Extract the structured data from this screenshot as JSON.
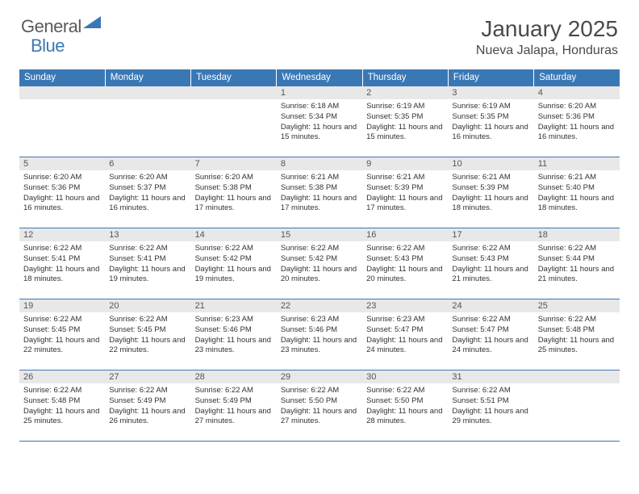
{
  "logo": {
    "text1": "General",
    "text2": "Blue",
    "text1_color": "#5a5a5a",
    "text2_color": "#3a78b5",
    "icon_color": "#3a78b5"
  },
  "title": "January 2025",
  "location": "Nueva Jalapa, Honduras",
  "colors": {
    "header_bg": "#3a78b5",
    "header_text": "#ffffff",
    "daynum_bg": "#e8e8e8",
    "border": "#3a78b5"
  },
  "columns": [
    "Sunday",
    "Monday",
    "Tuesday",
    "Wednesday",
    "Thursday",
    "Friday",
    "Saturday"
  ],
  "weeks": [
    [
      null,
      null,
      null,
      {
        "n": "1",
        "sr": "6:18 AM",
        "ss": "5:34 PM",
        "dl": "11 hours and 15 minutes."
      },
      {
        "n": "2",
        "sr": "6:19 AM",
        "ss": "5:35 PM",
        "dl": "11 hours and 15 minutes."
      },
      {
        "n": "3",
        "sr": "6:19 AM",
        "ss": "5:35 PM",
        "dl": "11 hours and 16 minutes."
      },
      {
        "n": "4",
        "sr": "6:20 AM",
        "ss": "5:36 PM",
        "dl": "11 hours and 16 minutes."
      }
    ],
    [
      {
        "n": "5",
        "sr": "6:20 AM",
        "ss": "5:36 PM",
        "dl": "11 hours and 16 minutes."
      },
      {
        "n": "6",
        "sr": "6:20 AM",
        "ss": "5:37 PM",
        "dl": "11 hours and 16 minutes."
      },
      {
        "n": "7",
        "sr": "6:20 AM",
        "ss": "5:38 PM",
        "dl": "11 hours and 17 minutes."
      },
      {
        "n": "8",
        "sr": "6:21 AM",
        "ss": "5:38 PM",
        "dl": "11 hours and 17 minutes."
      },
      {
        "n": "9",
        "sr": "6:21 AM",
        "ss": "5:39 PM",
        "dl": "11 hours and 17 minutes."
      },
      {
        "n": "10",
        "sr": "6:21 AM",
        "ss": "5:39 PM",
        "dl": "11 hours and 18 minutes."
      },
      {
        "n": "11",
        "sr": "6:21 AM",
        "ss": "5:40 PM",
        "dl": "11 hours and 18 minutes."
      }
    ],
    [
      {
        "n": "12",
        "sr": "6:22 AM",
        "ss": "5:41 PM",
        "dl": "11 hours and 18 minutes."
      },
      {
        "n": "13",
        "sr": "6:22 AM",
        "ss": "5:41 PM",
        "dl": "11 hours and 19 minutes."
      },
      {
        "n": "14",
        "sr": "6:22 AM",
        "ss": "5:42 PM",
        "dl": "11 hours and 19 minutes."
      },
      {
        "n": "15",
        "sr": "6:22 AM",
        "ss": "5:42 PM",
        "dl": "11 hours and 20 minutes."
      },
      {
        "n": "16",
        "sr": "6:22 AM",
        "ss": "5:43 PM",
        "dl": "11 hours and 20 minutes."
      },
      {
        "n": "17",
        "sr": "6:22 AM",
        "ss": "5:43 PM",
        "dl": "11 hours and 21 minutes."
      },
      {
        "n": "18",
        "sr": "6:22 AM",
        "ss": "5:44 PM",
        "dl": "11 hours and 21 minutes."
      }
    ],
    [
      {
        "n": "19",
        "sr": "6:22 AM",
        "ss": "5:45 PM",
        "dl": "11 hours and 22 minutes."
      },
      {
        "n": "20",
        "sr": "6:22 AM",
        "ss": "5:45 PM",
        "dl": "11 hours and 22 minutes."
      },
      {
        "n": "21",
        "sr": "6:23 AM",
        "ss": "5:46 PM",
        "dl": "11 hours and 23 minutes."
      },
      {
        "n": "22",
        "sr": "6:23 AM",
        "ss": "5:46 PM",
        "dl": "11 hours and 23 minutes."
      },
      {
        "n": "23",
        "sr": "6:23 AM",
        "ss": "5:47 PM",
        "dl": "11 hours and 24 minutes."
      },
      {
        "n": "24",
        "sr": "6:22 AM",
        "ss": "5:47 PM",
        "dl": "11 hours and 24 minutes."
      },
      {
        "n": "25",
        "sr": "6:22 AM",
        "ss": "5:48 PM",
        "dl": "11 hours and 25 minutes."
      }
    ],
    [
      {
        "n": "26",
        "sr": "6:22 AM",
        "ss": "5:48 PM",
        "dl": "11 hours and 25 minutes."
      },
      {
        "n": "27",
        "sr": "6:22 AM",
        "ss": "5:49 PM",
        "dl": "11 hours and 26 minutes."
      },
      {
        "n": "28",
        "sr": "6:22 AM",
        "ss": "5:49 PM",
        "dl": "11 hours and 27 minutes."
      },
      {
        "n": "29",
        "sr": "6:22 AM",
        "ss": "5:50 PM",
        "dl": "11 hours and 27 minutes."
      },
      {
        "n": "30",
        "sr": "6:22 AM",
        "ss": "5:50 PM",
        "dl": "11 hours and 28 minutes."
      },
      {
        "n": "31",
        "sr": "6:22 AM",
        "ss": "5:51 PM",
        "dl": "11 hours and 29 minutes."
      },
      null
    ]
  ],
  "labels": {
    "sunrise": "Sunrise:",
    "sunset": "Sunset:",
    "daylight": "Daylight:"
  }
}
